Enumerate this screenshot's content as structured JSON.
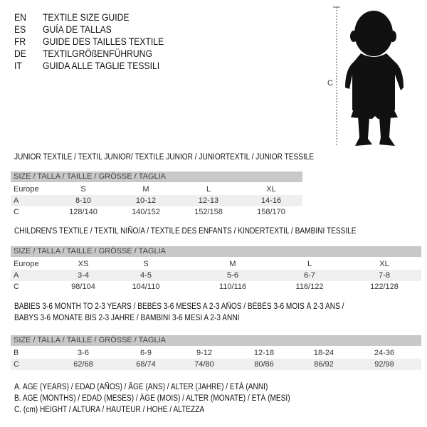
{
  "languages": [
    {
      "code": "EN",
      "title": "TEXTILE SIZE GUIDE"
    },
    {
      "code": "ES",
      "title": "GUÍA DE TALLAS"
    },
    {
      "code": "FR",
      "title": "GUIDE DES TAILLES TEXTILE"
    },
    {
      "code": "DE",
      "title": "TEXTILGRÖßENFÜHRUNG"
    },
    {
      "code": "IT",
      "title": "GUIDA ALLE TAGLIE TESSILI"
    }
  ],
  "figure": {
    "measure_label": "C"
  },
  "tables": [
    {
      "heading": "JUNIOR TEXTILE / TEXTIL JUNIOR/ TEXTILE JUNIOR / JUNIORTEXTIL / JUNIOR TESSILE",
      "header": "SIZE / TALLA / TAILLE / GRÖSSE / TAGLIA",
      "rows": [
        {
          "label": "Europe",
          "values": [
            "S",
            "M",
            "L",
            "XL"
          ]
        },
        {
          "label": "A",
          "values": [
            "8-10",
            "10-12",
            "12-13",
            "14-16"
          ]
        },
        {
          "label": "C",
          "values": [
            "128/140",
            "140/152",
            "152/158",
            "158/170"
          ]
        }
      ]
    },
    {
      "heading": "CHILDREN'S TEXTILE / TEXTIL NIÑO/A / TEXTILE DES ENFANTS / KINDERTEXTIL / BAMBINI TESSILE",
      "header": "SIZE / TALLA / TAILLE / GRÖSSE / TAGLIA",
      "rows": [
        {
          "label": "Europe",
          "values": [
            "XS",
            "S",
            "M",
            "L",
            "XL"
          ]
        },
        {
          "label": "A",
          "values": [
            "3-4",
            "4-5",
            "5-6",
            "6-7",
            "7-8"
          ]
        },
        {
          "label": "C",
          "values": [
            "98/104",
            "104/110",
            "110/116",
            "116/122",
            "122/128"
          ]
        }
      ]
    },
    {
      "heading": "BABIES 3-6 MONTH TO 2-3 YEARS / BEBÉS 3-6 MESES A 2-3 AÑOS / BÉBÉS 3-6 MOIS À 2-3 ANS /",
      "heading2": "BABYS 3-6 MONATE BIS 2-3 JAHRE / BAMBINI 3-6 MESI A 2-3 ANNI",
      "header": "SIZE / TALLA / TAILLE / GRÖSSE / TAGLIA",
      "rows": [
        {
          "label": "B",
          "values": [
            "3-6",
            "6-9",
            "9-12",
            "12-18",
            "18-24",
            "24-36"
          ]
        },
        {
          "label": "C",
          "values": [
            "62/68",
            "68/74",
            "74/80",
            "80/86",
            "86/92",
            "92/98"
          ]
        }
      ]
    }
  ],
  "legend": [
    "A. AGE (YEARS) / EDAD (AÑOS) / ÂGE (ANS) / ALTER (JAHRE) / ETÀ (ANNI)",
    "B. AGE (MONTHS) / EDAD (MESES) / ÂGE (MOIS) / ALTER (MONATE) / ETÀ (MESI)",
    "C. (cm) HEIGHT / ALTURA / HAUTEUR / HÖHE / ALTEZZA"
  ]
}
